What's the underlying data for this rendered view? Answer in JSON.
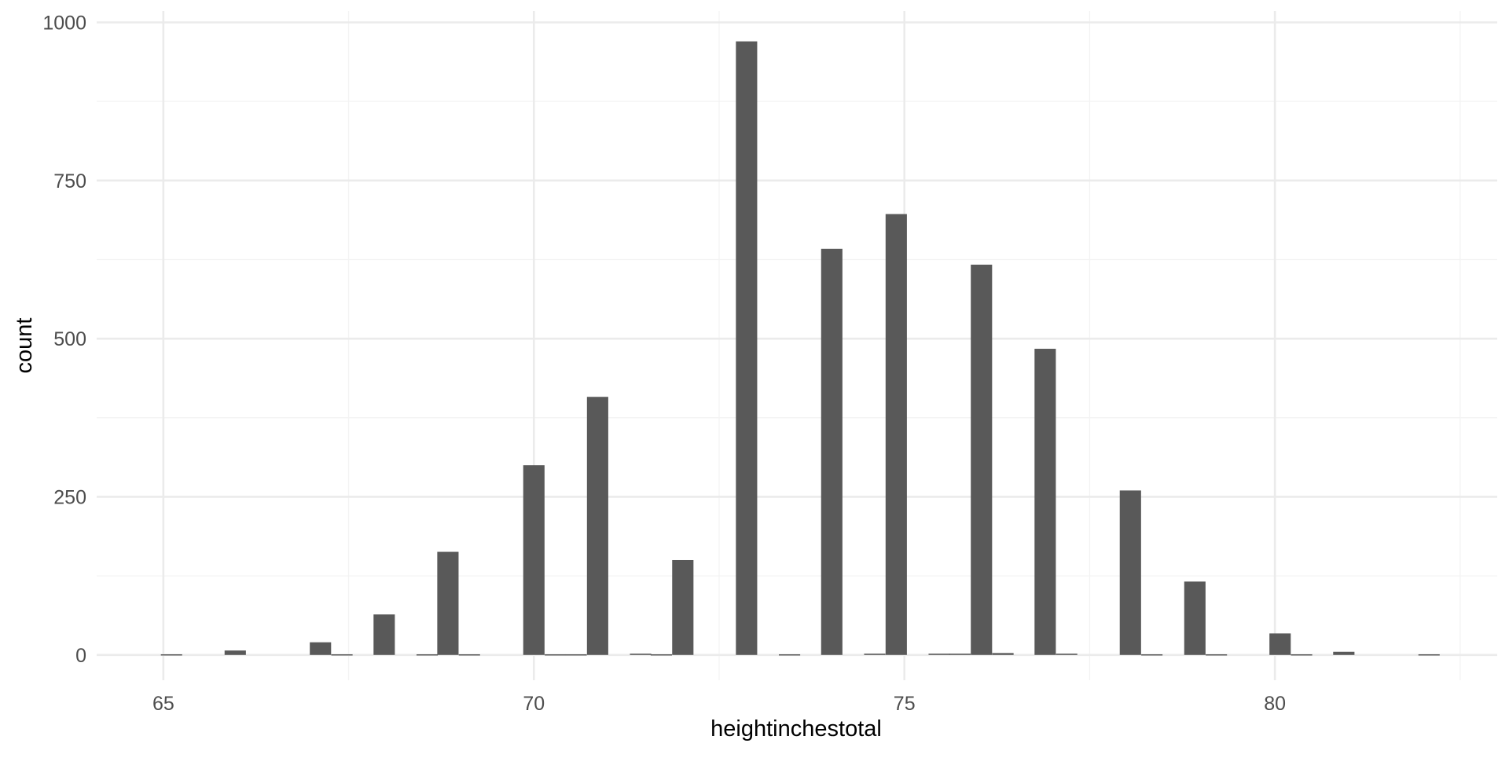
{
  "chart_data": {
    "type": "bar",
    "title": "",
    "xlabel": "heightinchestotal",
    "ylabel": "count",
    "xlim": [
      64.1,
      83.0
    ],
    "ylim": [
      -40,
      1018
    ],
    "x_ticks": [
      65,
      70,
      75,
      80
    ],
    "y_ticks": [
      0,
      250,
      500,
      750,
      1000
    ],
    "x_tick_labels": [
      "65",
      "70",
      "75",
      "80"
    ],
    "y_tick_labels": [
      "0",
      "250",
      "500",
      "750",
      "1000"
    ],
    "grid": true,
    "bar_color": "#595959",
    "bin_width": 0.2875,
    "bins": [
      {
        "x": 65.11,
        "count": 1
      },
      {
        "x": 65.97,
        "count": 7
      },
      {
        "x": 67.12,
        "count": 20
      },
      {
        "x": 67.41,
        "count": 1
      },
      {
        "x": 67.98,
        "count": 64
      },
      {
        "x": 68.56,
        "count": 1
      },
      {
        "x": 68.84,
        "count": 163
      },
      {
        "x": 69.13,
        "count": 1
      },
      {
        "x": 70.0,
        "count": 300
      },
      {
        "x": 70.29,
        "count": 1
      },
      {
        "x": 70.57,
        "count": 1
      },
      {
        "x": 70.86,
        "count": 408
      },
      {
        "x": 71.44,
        "count": 2
      },
      {
        "x": 71.72,
        "count": 1
      },
      {
        "x": 72.01,
        "count": 150
      },
      {
        "x": 72.87,
        "count": 970
      },
      {
        "x": 73.45,
        "count": 1
      },
      {
        "x": 74.02,
        "count": 642
      },
      {
        "x": 74.6,
        "count": 2
      },
      {
        "x": 74.89,
        "count": 697
      },
      {
        "x": 75.47,
        "count": 2
      },
      {
        "x": 75.75,
        "count": 2
      },
      {
        "x": 76.04,
        "count": 617
      },
      {
        "x": 76.33,
        "count": 3
      },
      {
        "x": 76.9,
        "count": 484
      },
      {
        "x": 77.19,
        "count": 2
      },
      {
        "x": 78.05,
        "count": 260
      },
      {
        "x": 78.34,
        "count": 1
      },
      {
        "x": 78.92,
        "count": 116
      },
      {
        "x": 79.21,
        "count": 1
      },
      {
        "x": 80.07,
        "count": 34
      },
      {
        "x": 80.36,
        "count": 1
      },
      {
        "x": 80.93,
        "count": 5
      },
      {
        "x": 82.08,
        "count": 1
      }
    ]
  }
}
